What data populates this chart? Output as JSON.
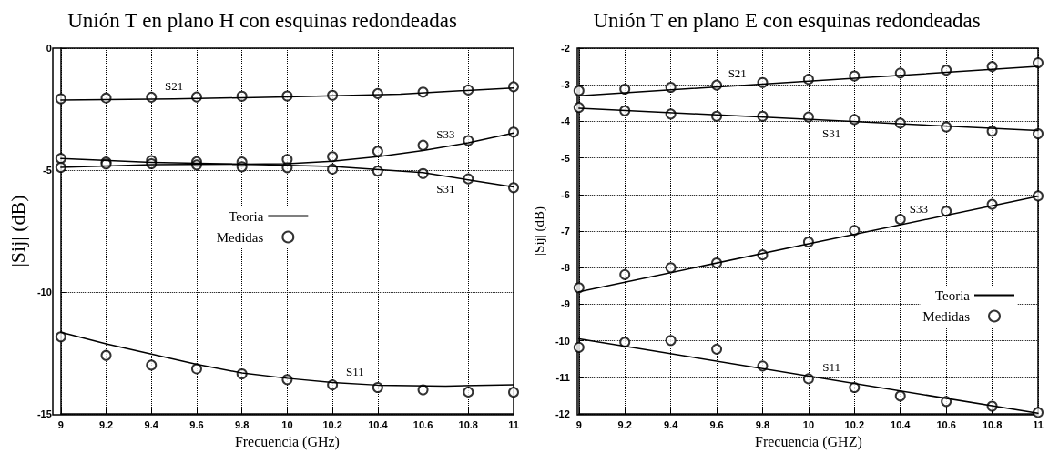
{
  "chart_data": [
    {
      "type": "line",
      "title": "Unión T en plano H con esquinas redondeadas",
      "xlabel": "Frecuencia (GHz)",
      "ylabel": "|Sij| (dB)",
      "x": [
        9,
        9.2,
        9.4,
        9.6,
        9.8,
        10,
        10.2,
        10.4,
        10.6,
        10.8,
        11
      ],
      "xlim": [
        9,
        11
      ],
      "xticks": [
        9,
        9.2,
        9.4,
        9.6,
        9.8,
        10,
        10.2,
        10.4,
        10.6,
        10.8,
        11
      ],
      "ylim": [
        -15,
        0
      ],
      "yticks": [
        -15,
        -10,
        -5,
        0
      ],
      "grid": true,
      "legend": "center",
      "series": [
        {
          "name": "Teoria",
          "type": "line",
          "marker": "none",
          "color": "#000000",
          "x": [
            9,
            9.5,
            10,
            10.5,
            11
          ],
          "values": [
            -2.13,
            -2.08,
            -2.0,
            -1.88,
            -1.63
          ]
        },
        {
          "type": "line",
          "marker": "none",
          "color": "#000000",
          "x": [
            9,
            9.4,
            9.8,
            10,
            10.2,
            10.4,
            10.6,
            10.8,
            11
          ],
          "values": [
            -4.52,
            -4.68,
            -4.76,
            -4.74,
            -4.64,
            -4.45,
            -4.2,
            -3.88,
            -3.48
          ]
        },
        {
          "type": "line",
          "marker": "none",
          "color": "#000000",
          "x": [
            9,
            9.4,
            9.8,
            10.2,
            10.6,
            10.8,
            11
          ],
          "values": [
            -4.89,
            -4.78,
            -4.76,
            -4.85,
            -5.1,
            -5.4,
            -5.69
          ]
        },
        {
          "type": "line",
          "marker": "none",
          "color": "#000000",
          "x": [
            9,
            9.2,
            9.4,
            9.6,
            9.8,
            10,
            10.2,
            10.4,
            10.7,
            11
          ],
          "values": [
            -11.65,
            -12.13,
            -12.55,
            -12.97,
            -13.32,
            -13.54,
            -13.71,
            -13.82,
            -13.86,
            -13.81
          ]
        },
        {
          "name": "Medidas",
          "type": "scatter",
          "marker": "circle",
          "color": "#000000",
          "values": [
            -2.07,
            -2.04,
            -2.01,
            -2.0,
            -1.97,
            -1.96,
            -1.93,
            -1.86,
            -1.8,
            -1.71,
            -1.58
          ]
        },
        {
          "type": "scatter",
          "marker": "circle",
          "color": "#000000",
          "values": [
            -4.52,
            -4.67,
            -4.61,
            -4.66,
            -4.67,
            -4.56,
            -4.45,
            -4.23,
            -3.98,
            -3.79,
            -3.44
          ]
        },
        {
          "type": "scatter",
          "marker": "circle",
          "color": "#000000",
          "values": [
            -4.89,
            -4.75,
            -4.74,
            -4.79,
            -4.86,
            -4.9,
            -4.96,
            -5.04,
            -5.14,
            -5.36,
            -5.72
          ]
        },
        {
          "type": "scatter",
          "marker": "circle",
          "color": "#000000",
          "values": [
            -11.84,
            -12.6,
            -13.0,
            -13.15,
            -13.36,
            -13.59,
            -13.81,
            -13.92,
            -14.01,
            -14.1,
            -14.11
          ]
        }
      ],
      "annotations": [
        {
          "text": "S21",
          "x": 9.5,
          "y": -2.08
        },
        {
          "text": "S33",
          "x": 10.7,
          "y": -4.04
        },
        {
          "text": "S31",
          "x": 10.7,
          "y": -5.25
        },
        {
          "text": "S11",
          "x": 10.3,
          "y": -13.77
        }
      ]
    },
    {
      "type": "line",
      "title": "Unión T en plano E con esquinas redondeadas",
      "xlabel": "Frecuencia (GHZ)",
      "ylabel": "|Sij| (dB)",
      "x": [
        9,
        9.2,
        9.4,
        9.6,
        9.8,
        10,
        10.2,
        10.4,
        10.6,
        10.8,
        11
      ],
      "xlim": [
        9,
        11
      ],
      "xticks": [
        9,
        9.2,
        9.4,
        9.6,
        9.8,
        10,
        10.2,
        10.4,
        10.6,
        10.8,
        11
      ],
      "ylim": [
        -12,
        -2
      ],
      "yticks": [
        -12,
        -11,
        -10,
        -9,
        -8,
        -7,
        -6,
        -5,
        -4,
        -3,
        -2
      ],
      "grid": true,
      "legend": "right",
      "series": [
        {
          "name": "Teoria",
          "type": "line",
          "marker": "none",
          "color": "#000000",
          "x": [
            9,
            11
          ],
          "values": [
            -3.3,
            -2.5
          ]
        },
        {
          "type": "line",
          "marker": "none",
          "color": "#000000",
          "x": [
            9,
            11
          ],
          "values": [
            -3.64,
            -4.25
          ]
        },
        {
          "type": "line",
          "marker": "none",
          "color": "#000000",
          "x": [
            9,
            10,
            11
          ],
          "values": [
            -8.66,
            -7.35,
            -6.05
          ]
        },
        {
          "type": "line",
          "marker": "none",
          "color": "#000000",
          "x": [
            9,
            11
          ],
          "values": [
            -9.95,
            -11.98
          ]
        },
        {
          "name": "Medidas",
          "type": "scatter",
          "marker": "circle",
          "color": "#000000",
          "values": [
            -3.16,
            -3.12,
            -3.07,
            -3.01,
            -2.94,
            -2.85,
            -2.76,
            -2.68,
            -2.6,
            -2.5,
            -2.4
          ]
        },
        {
          "type": "scatter",
          "marker": "circle",
          "color": "#000000",
          "values": [
            -3.62,
            -3.71,
            -3.8,
            -3.86,
            -3.86,
            -3.88,
            -3.95,
            -4.05,
            -4.15,
            -4.27,
            -4.34
          ]
        },
        {
          "type": "scatter",
          "marker": "circle",
          "color": "#000000",
          "values": [
            -8.55,
            -8.19,
            -8.0,
            -7.87,
            -7.65,
            -7.3,
            -6.98,
            -6.68,
            -6.46,
            -6.27,
            -6.04
          ]
        },
        {
          "type": "scatter",
          "marker": "circle",
          "color": "#000000",
          "values": [
            -10.18,
            -10.04,
            -9.99,
            -10.23,
            -10.69,
            -11.04,
            -11.28,
            -11.51,
            -11.66,
            -11.79,
            -11.96
          ]
        }
      ],
      "annotations": [
        {
          "text": "S21",
          "x": 9.69,
          "y": -3.02
        },
        {
          "text": "S31",
          "x": 10.1,
          "y": -3.98
        },
        {
          "text": "S33",
          "x": 10.48,
          "y": -6.73
        },
        {
          "text": "S11",
          "x": 10.1,
          "y": -11.07
        }
      ]
    }
  ]
}
